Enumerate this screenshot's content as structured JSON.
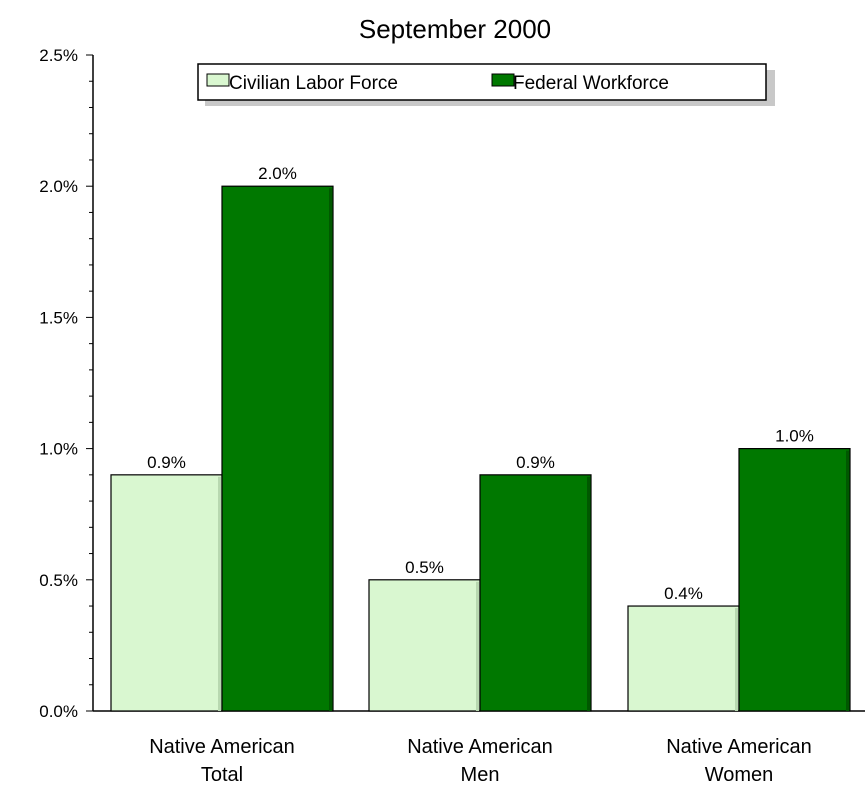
{
  "chart_data": {
    "type": "bar",
    "title": "September 2000",
    "categories": [
      [
        "Native American",
        "Total"
      ],
      [
        "Native American",
        "Men"
      ],
      [
        "Native American",
        "Women"
      ]
    ],
    "series": [
      {
        "name": "Civilian Labor Force",
        "values": [
          0.9,
          0.5,
          0.4
        ],
        "labels": [
          "0.9%",
          "0.5%",
          "0.4%"
        ],
        "color": "#d9f7d0"
      },
      {
        "name": "Federal Workforce",
        "values": [
          2.0,
          0.9,
          1.0
        ],
        "labels": [
          "2.0%",
          "0.9%",
          "1.0%"
        ],
        "color": "#007800"
      }
    ],
    "yticks": [
      "0.0%",
      "0.5%",
      "1.0%",
      "1.5%",
      "2.0%",
      "2.5%"
    ],
    "ytick_values": [
      0,
      0.5,
      1.0,
      1.5,
      2.0,
      2.5
    ],
    "ylim": [
      0,
      2.5
    ],
    "xlabel": "",
    "ylabel": "",
    "grid": false,
    "legend_position": "top-center"
  }
}
